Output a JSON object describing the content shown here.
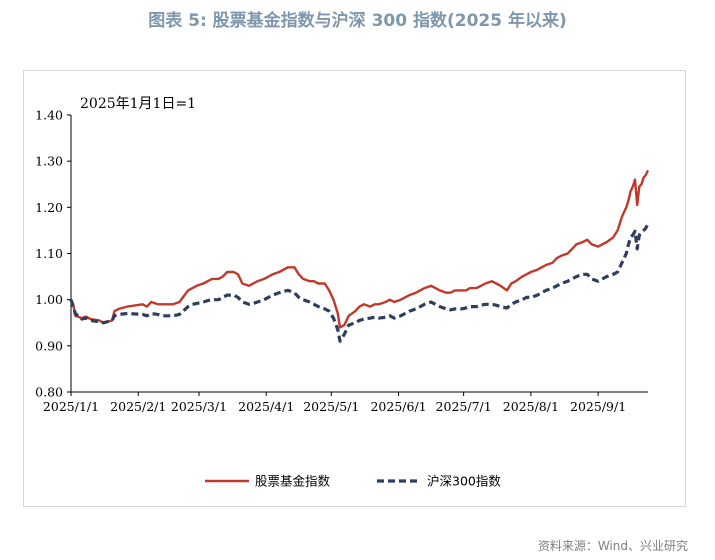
{
  "figure": {
    "title": "图表 5:  股票基金指数与沪深 300 指数(2025 年以来)",
    "source": "资料来源：Wind、兴业研究"
  },
  "colors": {
    "fund_index": "#c0392b",
    "csi300": "#2e3e5c",
    "title": "#7f97ad"
  },
  "chart_data": {
    "type": "line",
    "title": "",
    "annotation": "2025年1月1日=1",
    "xlabel": "",
    "ylabel": "",
    "ylim": [
      0.8,
      1.4
    ],
    "yticks": [
      "0.80",
      "0.90",
      "1.00",
      "1.10",
      "1.20",
      "1.30",
      "1.40"
    ],
    "xticks": [
      "2025/1/1",
      "2025/2/1",
      "2025/3/1",
      "2025/4/1",
      "2025/5/1",
      "2025/6/1",
      "2025/7/1",
      "2025/8/1",
      "2025/9/1"
    ],
    "xlim": [
      "2025-01-01",
      "2025-09-24"
    ],
    "grid": false,
    "legend_position": "bottom",
    "series": [
      {
        "name": "股票基金指数",
        "style": "solid",
        "points": [
          [
            "2025-01-01",
            1.0
          ],
          [
            "2025-01-02",
            0.99
          ],
          [
            "2025-01-03",
            0.965
          ],
          [
            "2025-01-06",
            0.96
          ],
          [
            "2025-01-08",
            0.963
          ],
          [
            "2025-01-10",
            0.958
          ],
          [
            "2025-01-14",
            0.955
          ],
          [
            "2025-01-16",
            0.95
          ],
          [
            "2025-01-20",
            0.955
          ],
          [
            "2025-01-21",
            0.975
          ],
          [
            "2025-01-23",
            0.98
          ],
          [
            "2025-01-27",
            0.985
          ],
          [
            "2025-02-03",
            0.99
          ],
          [
            "2025-02-05",
            0.985
          ],
          [
            "2025-02-07",
            0.995
          ],
          [
            "2025-02-10",
            0.99
          ],
          [
            "2025-02-12",
            0.99
          ],
          [
            "2025-02-17",
            0.99
          ],
          [
            "2025-02-20",
            0.995
          ],
          [
            "2025-02-24",
            1.02
          ],
          [
            "2025-02-26",
            1.025
          ],
          [
            "2025-02-28",
            1.03
          ],
          [
            "2025-03-03",
            1.035
          ],
          [
            "2025-03-05",
            1.04
          ],
          [
            "2025-03-07",
            1.045
          ],
          [
            "2025-03-10",
            1.045
          ],
          [
            "2025-03-12",
            1.05
          ],
          [
            "2025-03-14",
            1.06
          ],
          [
            "2025-03-17",
            1.06
          ],
          [
            "2025-03-19",
            1.055
          ],
          [
            "2025-03-21",
            1.035
          ],
          [
            "2025-03-24",
            1.03
          ],
          [
            "2025-03-26",
            1.035
          ],
          [
            "2025-03-28",
            1.04
          ],
          [
            "2025-03-31",
            1.045
          ],
          [
            "2025-04-02",
            1.05
          ],
          [
            "2025-04-04",
            1.055
          ],
          [
            "2025-04-07",
            1.06
          ],
          [
            "2025-04-09",
            1.065
          ],
          [
            "2025-04-11",
            1.07
          ],
          [
            "2025-04-14",
            1.07
          ],
          [
            "2025-04-16",
            1.055
          ],
          [
            "2025-04-18",
            1.045
          ],
          [
            "2025-04-21",
            1.04
          ],
          [
            "2025-04-23",
            1.04
          ],
          [
            "2025-04-25",
            1.035
          ],
          [
            "2025-04-28",
            1.035
          ],
          [
            "2025-04-30",
            1.02
          ],
          [
            "2025-05-02",
            1.0
          ],
          [
            "2025-05-04",
            0.97
          ],
          [
            "2025-05-05",
            0.94
          ],
          [
            "2025-05-07",
            0.945
          ],
          [
            "2025-05-09",
            0.965
          ],
          [
            "2025-05-12",
            0.975
          ],
          [
            "2025-05-14",
            0.985
          ],
          [
            "2025-05-16",
            0.99
          ],
          [
            "2025-05-19",
            0.985
          ],
          [
            "2025-05-21",
            0.99
          ],
          [
            "2025-05-23",
            0.99
          ],
          [
            "2025-05-26",
            0.995
          ],
          [
            "2025-05-28",
            1.0
          ],
          [
            "2025-05-30",
            0.995
          ],
          [
            "2025-06-02",
            1.0
          ],
          [
            "2025-06-04",
            1.005
          ],
          [
            "2025-06-06",
            1.01
          ],
          [
            "2025-06-09",
            1.015
          ],
          [
            "2025-06-11",
            1.02
          ],
          [
            "2025-06-13",
            1.025
          ],
          [
            "2025-06-16",
            1.03
          ],
          [
            "2025-06-18",
            1.025
          ],
          [
            "2025-06-20",
            1.02
          ],
          [
            "2025-06-23",
            1.015
          ],
          [
            "2025-06-25",
            1.015
          ],
          [
            "2025-06-27",
            1.02
          ],
          [
            "2025-06-30",
            1.02
          ],
          [
            "2025-07-02",
            1.02
          ],
          [
            "2025-07-04",
            1.025
          ],
          [
            "2025-07-07",
            1.025
          ],
          [
            "2025-07-09",
            1.03
          ],
          [
            "2025-07-11",
            1.035
          ],
          [
            "2025-07-14",
            1.04
          ],
          [
            "2025-07-16",
            1.035
          ],
          [
            "2025-07-18",
            1.03
          ],
          [
            "2025-07-21",
            1.02
          ],
          [
            "2025-07-23",
            1.035
          ],
          [
            "2025-07-25",
            1.04
          ],
          [
            "2025-07-28",
            1.05
          ],
          [
            "2025-07-30",
            1.055
          ],
          [
            "2025-08-01",
            1.06
          ],
          [
            "2025-08-04",
            1.065
          ],
          [
            "2025-08-06",
            1.07
          ],
          [
            "2025-08-08",
            1.075
          ],
          [
            "2025-08-11",
            1.08
          ],
          [
            "2025-08-13",
            1.09
          ],
          [
            "2025-08-15",
            1.095
          ],
          [
            "2025-08-18",
            1.1
          ],
          [
            "2025-08-20",
            1.11
          ],
          [
            "2025-08-22",
            1.12
          ],
          [
            "2025-08-25",
            1.125
          ],
          [
            "2025-08-27",
            1.13
          ],
          [
            "2025-08-29",
            1.12
          ],
          [
            "2025-09-01",
            1.115
          ],
          [
            "2025-09-03",
            1.12
          ],
          [
            "2025-09-05",
            1.125
          ],
          [
            "2025-09-08",
            1.135
          ],
          [
            "2025-09-10",
            1.15
          ],
          [
            "2025-09-12",
            1.18
          ],
          [
            "2025-09-14",
            1.2
          ],
          [
            "2025-09-15",
            1.215
          ],
          [
            "2025-09-16",
            1.235
          ],
          [
            "2025-09-17",
            1.245
          ],
          [
            "2025-09-18",
            1.26
          ],
          [
            "2025-09-19",
            1.205
          ],
          [
            "2025-09-20",
            1.245
          ],
          [
            "2025-09-21",
            1.25
          ],
          [
            "2025-09-22",
            1.265
          ],
          [
            "2025-09-23",
            1.27
          ],
          [
            "2025-09-24",
            1.28
          ]
        ]
      },
      {
        "name": "沪深300指数",
        "style": "dashed",
        "points": [
          [
            "2025-01-01",
            1.0
          ],
          [
            "2025-01-02",
            0.985
          ],
          [
            "2025-01-03",
            0.97
          ],
          [
            "2025-01-06",
            0.958
          ],
          [
            "2025-01-08",
            0.96
          ],
          [
            "2025-01-10",
            0.955
          ],
          [
            "2025-01-14",
            0.952
          ],
          [
            "2025-01-16",
            0.95
          ],
          [
            "2025-01-20",
            0.955
          ],
          [
            "2025-01-21",
            0.965
          ],
          [
            "2025-01-23",
            0.968
          ],
          [
            "2025-01-27",
            0.97
          ],
          [
            "2025-02-03",
            0.968
          ],
          [
            "2025-02-05",
            0.965
          ],
          [
            "2025-02-07",
            0.97
          ],
          [
            "2025-02-10",
            0.968
          ],
          [
            "2025-02-12",
            0.965
          ],
          [
            "2025-02-17",
            0.965
          ],
          [
            "2025-02-20",
            0.968
          ],
          [
            "2025-02-24",
            0.985
          ],
          [
            "2025-02-26",
            0.99
          ],
          [
            "2025-02-28",
            0.992
          ],
          [
            "2025-03-03",
            0.995
          ],
          [
            "2025-03-05",
            0.998
          ],
          [
            "2025-03-07",
            1.0
          ],
          [
            "2025-03-10",
            1.0
          ],
          [
            "2025-03-12",
            1.005
          ],
          [
            "2025-03-14",
            1.01
          ],
          [
            "2025-03-17",
            1.01
          ],
          [
            "2025-03-19",
            1.005
          ],
          [
            "2025-03-21",
            0.995
          ],
          [
            "2025-03-24",
            0.99
          ],
          [
            "2025-03-26",
            0.992
          ],
          [
            "2025-03-28",
            0.995
          ],
          [
            "2025-03-31",
            1.0
          ],
          [
            "2025-04-02",
            1.005
          ],
          [
            "2025-04-04",
            1.01
          ],
          [
            "2025-04-07",
            1.015
          ],
          [
            "2025-04-09",
            1.018
          ],
          [
            "2025-04-11",
            1.02
          ],
          [
            "2025-04-14",
            1.015
          ],
          [
            "2025-04-16",
            1.005
          ],
          [
            "2025-04-18",
            1.0
          ],
          [
            "2025-04-21",
            0.995
          ],
          [
            "2025-04-23",
            0.99
          ],
          [
            "2025-04-25",
            0.985
          ],
          [
            "2025-04-28",
            0.98
          ],
          [
            "2025-04-30",
            0.975
          ],
          [
            "2025-05-02",
            0.96
          ],
          [
            "2025-05-04",
            0.935
          ],
          [
            "2025-05-05",
            0.91
          ],
          [
            "2025-05-07",
            0.925
          ],
          [
            "2025-05-09",
            0.945
          ],
          [
            "2025-05-12",
            0.95
          ],
          [
            "2025-05-14",
            0.955
          ],
          [
            "2025-05-16",
            0.958
          ],
          [
            "2025-05-19",
            0.96
          ],
          [
            "2025-05-21",
            0.962
          ],
          [
            "2025-05-23",
            0.96
          ],
          [
            "2025-05-26",
            0.962
          ],
          [
            "2025-05-28",
            0.965
          ],
          [
            "2025-05-30",
            0.96
          ],
          [
            "2025-06-02",
            0.965
          ],
          [
            "2025-06-04",
            0.97
          ],
          [
            "2025-06-06",
            0.975
          ],
          [
            "2025-06-09",
            0.98
          ],
          [
            "2025-06-11",
            0.985
          ],
          [
            "2025-06-13",
            0.99
          ],
          [
            "2025-06-16",
            0.995
          ],
          [
            "2025-06-18",
            0.99
          ],
          [
            "2025-06-20",
            0.985
          ],
          [
            "2025-06-23",
            0.98
          ],
          [
            "2025-06-25",
            0.978
          ],
          [
            "2025-06-27",
            0.98
          ],
          [
            "2025-06-30",
            0.98
          ],
          [
            "2025-07-02",
            0.982
          ],
          [
            "2025-07-04",
            0.985
          ],
          [
            "2025-07-07",
            0.985
          ],
          [
            "2025-07-09",
            0.988
          ],
          [
            "2025-07-11",
            0.99
          ],
          [
            "2025-07-14",
            0.99
          ],
          [
            "2025-07-16",
            0.988
          ],
          [
            "2025-07-18",
            0.985
          ],
          [
            "2025-07-21",
            0.982
          ],
          [
            "2025-07-23",
            0.99
          ],
          [
            "2025-07-25",
            0.995
          ],
          [
            "2025-07-28",
            1.0
          ],
          [
            "2025-07-30",
            1.005
          ],
          [
            "2025-08-01",
            1.005
          ],
          [
            "2025-08-04",
            1.01
          ],
          [
            "2025-08-06",
            1.015
          ],
          [
            "2025-08-08",
            1.02
          ],
          [
            "2025-08-11",
            1.025
          ],
          [
            "2025-08-13",
            1.03
          ],
          [
            "2025-08-15",
            1.035
          ],
          [
            "2025-08-18",
            1.04
          ],
          [
            "2025-08-20",
            1.045
          ],
          [
            "2025-08-22",
            1.05
          ],
          [
            "2025-08-25",
            1.055
          ],
          [
            "2025-08-27",
            1.055
          ],
          [
            "2025-08-29",
            1.045
          ],
          [
            "2025-09-01",
            1.04
          ],
          [
            "2025-09-03",
            1.045
          ],
          [
            "2025-09-05",
            1.05
          ],
          [
            "2025-09-08",
            1.055
          ],
          [
            "2025-09-10",
            1.06
          ],
          [
            "2025-09-12",
            1.08
          ],
          [
            "2025-09-14",
            1.1
          ],
          [
            "2025-09-15",
            1.12
          ],
          [
            "2025-09-16",
            1.135
          ],
          [
            "2025-09-17",
            1.14
          ],
          [
            "2025-09-18",
            1.148
          ],
          [
            "2025-09-19",
            1.11
          ],
          [
            "2025-09-20",
            1.14
          ],
          [
            "2025-09-21",
            1.145
          ],
          [
            "2025-09-22",
            1.15
          ],
          [
            "2025-09-23",
            1.155
          ],
          [
            "2025-09-24",
            1.165
          ]
        ]
      }
    ]
  }
}
